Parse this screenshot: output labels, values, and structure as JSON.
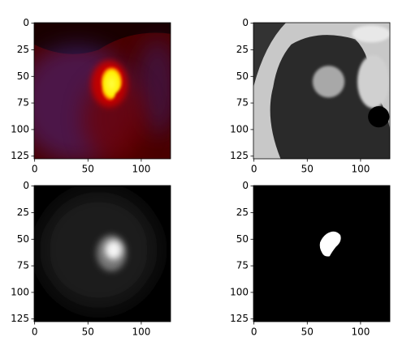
{
  "chart_data": [
    {
      "type": "image",
      "xlim": [
        -0.5,
        127.5
      ],
      "ylim": [
        127.5,
        -0.5
      ],
      "xticks": [
        0,
        50,
        100
      ],
      "yticks": [
        0,
        25,
        50,
        75,
        100,
        125
      ]
    },
    {
      "type": "image",
      "xlim": [
        -0.5,
        127.5
      ],
      "ylim": [
        127.5,
        -0.5
      ],
      "xticks": [
        0,
        50,
        100
      ],
      "yticks": [
        0,
        25,
        50,
        75,
        100,
        125
      ]
    },
    {
      "type": "image",
      "xlim": [
        -0.5,
        127.5
      ],
      "ylim": [
        127.5,
        -0.5
      ],
      "xticks": [
        0,
        50,
        100
      ],
      "yticks": [
        0,
        25,
        50,
        75,
        100,
        125
      ]
    },
    {
      "type": "image",
      "xlim": [
        -0.5,
        127.5
      ],
      "ylim": [
        127.5,
        -0.5
      ],
      "xticks": [
        0,
        50,
        100
      ],
      "yticks": [
        0,
        25,
        50,
        75,
        100,
        125
      ]
    }
  ]
}
